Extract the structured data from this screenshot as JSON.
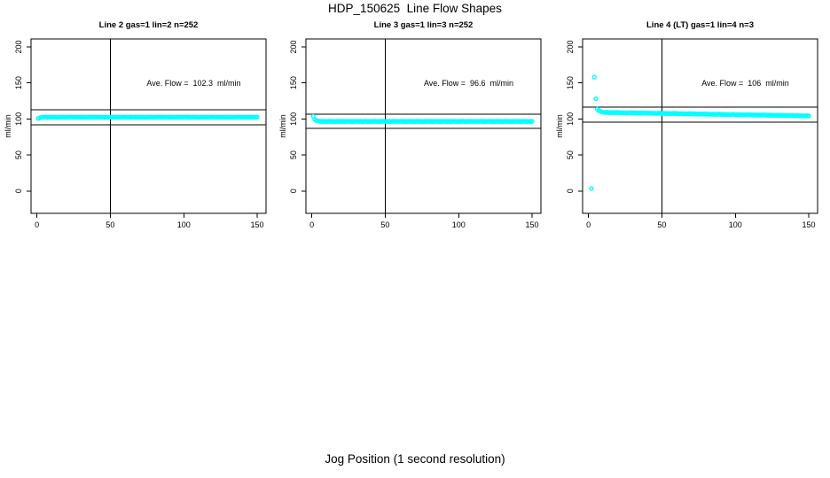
{
  "title": "HDP_150625  Line Flow Shapes",
  "x_axis_label": "Jog Position (1 second resolution)",
  "colors": {
    "points": "#00FFFF",
    "lines": "#000000",
    "background": "#FFFFFF",
    "text": "#000000"
  },
  "chart_data": [
    {
      "type": "scatter",
      "title": "Line 2 gas=1 lin=2 n=252",
      "annotation": "Ave. Flow =  102.3  ml/min",
      "avg_flow_ml_min": 102.3,
      "n": 252,
      "xlabel": "",
      "ylabel": "ml/min",
      "x_ticks": [
        0,
        50,
        100,
        150
      ],
      "y_ticks": [
        0,
        50,
        100,
        150,
        200
      ],
      "xlim": [
        -4,
        156
      ],
      "ylim": [
        -31,
        211
      ],
      "grid": false,
      "ref_lines": {
        "vertical_x": 50,
        "upper_y": 112.5,
        "lower_y": 92.1
      },
      "x_start": 1,
      "y": [
        100.6,
        101.5,
        102.1,
        102.4,
        102.2,
        102.5,
        102.0,
        102.3,
        102.1,
        102.4,
        102.2,
        102.5,
        102.0,
        102.3,
        102.1,
        102.4,
        102.2,
        102.5,
        102.0,
        102.3,
        102.1,
        102.4,
        102.2,
        102.5,
        102.0,
        102.3,
        102.1,
        102.4,
        102.2,
        102.5,
        102.0,
        102.3,
        102.1,
        102.4,
        102.2,
        102.5,
        102.0,
        102.3,
        102.1,
        102.4,
        102.2,
        102.5,
        102.0,
        102.3,
        102.1,
        102.4,
        102.2,
        102.5,
        102.0,
        102.3,
        102.1,
        102.4,
        102.2,
        102.5,
        102.0,
        102.3,
        102.1,
        102.4,
        102.2,
        102.5,
        102.0,
        102.3,
        102.1,
        102.4,
        102.2,
        102.5,
        102.0,
        102.3,
        102.1,
        102.4,
        102.2,
        102.5,
        102.0,
        102.3,
        102.1,
        102.4,
        102.2,
        102.5,
        102.0,
        102.3,
        102.1,
        102.4,
        102.2,
        102.5,
        102.0,
        102.3,
        102.1,
        102.4,
        102.2,
        102.5,
        102.0,
        102.3,
        102.1,
        102.4,
        102.2,
        102.5,
        102.0,
        102.3,
        102.1,
        102.4,
        102.2,
        102.5,
        102.0,
        102.3,
        102.1,
        102.4,
        102.2,
        102.5,
        102.0,
        102.3,
        102.1,
        102.4,
        102.2,
        102.5,
        102.0,
        102.3,
        102.1,
        102.4,
        102.2,
        102.5,
        102.0,
        102.3,
        102.1,
        102.4,
        102.2,
        102.5,
        102.0,
        102.3,
        102.1,
        102.4,
        102.2,
        102.5,
        102.0,
        102.3,
        102.1,
        102.4,
        102.2,
        102.5,
        102.0,
        102.3,
        102.1,
        102.4,
        102.2,
        102.5,
        102.0,
        102.3,
        102.1,
        102.4,
        102.2,
        102.5
      ]
    },
    {
      "type": "scatter",
      "title": "Line 3 gas=1 lin=3 n=252",
      "annotation": "Ave. Flow =  96.6  ml/min",
      "avg_flow_ml_min": 96.6,
      "n": 252,
      "xlabel": "",
      "ylabel": "ml/min",
      "x_ticks": [
        0,
        50,
        100,
        150
      ],
      "y_ticks": [
        0,
        50,
        100,
        150,
        200
      ],
      "xlim": [
        -4,
        156
      ],
      "ylim": [
        -31,
        211
      ],
      "grid": false,
      "ref_lines": {
        "vertical_x": 50,
        "upper_y": 106.3,
        "lower_y": 86.9
      },
      "x_start": 1,
      "y": [
        103.6,
        99.2,
        97.8,
        97.2,
        96.9,
        96.5,
        96.8,
        96.4,
        96.7,
        96.3,
        96.6,
        96.5,
        96.8,
        96.4,
        96.7,
        96.3,
        96.6,
        96.5,
        96.8,
        96.4,
        96.7,
        96.3,
        96.6,
        96.5,
        96.8,
        96.4,
        96.7,
        96.3,
        96.6,
        96.5,
        96.8,
        96.4,
        96.7,
        96.3,
        96.6,
        96.5,
        96.8,
        96.4,
        96.7,
        96.3,
        96.6,
        96.5,
        96.8,
        96.4,
        96.7,
        96.3,
        96.6,
        96.5,
        96.8,
        96.4,
        96.7,
        96.3,
        96.6,
        96.5,
        96.8,
        96.4,
        96.7,
        96.3,
        96.6,
        96.5,
        96.8,
        96.4,
        96.7,
        96.3,
        96.6,
        96.5,
        96.8,
        96.4,
        96.7,
        96.3,
        96.6,
        96.5,
        96.8,
        96.4,
        96.7,
        96.3,
        96.6,
        96.5,
        96.8,
        96.4,
        96.7,
        96.3,
        96.6,
        96.5,
        96.8,
        96.4,
        96.7,
        96.3,
        96.6,
        96.5,
        96.8,
        96.4,
        96.7,
        96.3,
        96.6,
        96.5,
        96.8,
        96.4,
        96.7,
        96.3,
        96.6,
        96.5,
        96.8,
        96.4,
        96.7,
        96.3,
        96.6,
        96.5,
        96.8,
        96.4,
        96.7,
        96.3,
        96.6,
        96.5,
        96.8,
        96.4,
        96.7,
        96.3,
        96.6,
        96.5,
        96.8,
        96.4,
        96.7,
        96.3,
        96.6,
        96.5,
        96.8,
        96.4,
        96.7,
        96.3,
        96.6,
        96.5,
        96.8,
        96.4,
        96.7,
        96.3,
        96.6,
        96.5,
        96.8,
        96.4,
        96.7,
        96.3,
        96.6,
        96.5,
        96.8,
        96.4,
        96.7,
        96.3,
        96.6,
        96.5
      ]
    },
    {
      "type": "scatter",
      "title": "Line 4 (LT) gas=1 lin=4 n=3",
      "annotation": "Ave. Flow =  106  ml/min",
      "avg_flow_ml_min": 106,
      "n": 3,
      "xlabel": "",
      "ylabel": "ml/min",
      "x_ticks": [
        0,
        50,
        100,
        150
      ],
      "y_ticks": [
        0,
        50,
        100,
        150,
        200
      ],
      "xlim": [
        -4,
        156
      ],
      "ylim": [
        -31,
        211
      ],
      "grid": false,
      "ref_lines": {
        "vertical_x": 50,
        "upper_y": 116.6,
        "lower_y": 95.4
      },
      "x_start": 1,
      "y": [
        null,
        3.5,
        null,
        158,
        128,
        113.5,
        111.8,
        110.6,
        109.8,
        109.3,
        109.3,
        108.8,
        109.2,
        108.7,
        109.1,
        108.6,
        109.0,
        108.8,
        109.1,
        108.6,
        108.9,
        108.4,
        108.8,
        108.3,
        108.7,
        108.3,
        108.6,
        108.5,
        108.8,
        108.2,
        108.6,
        108.1,
        108.5,
        108.0,
        108.4,
        108.0,
        108.3,
        108.2,
        108.5,
        107.9,
        108.2,
        107.8,
        108.1,
        107.7,
        108.0,
        107.6,
        107.9,
        107.8,
        108.1,
        107.6,
        107.9,
        107.4,
        107.8,
        107.3,
        107.7,
        107.3,
        107.6,
        107.5,
        107.8,
        107.2,
        107.5,
        107.1,
        107.4,
        107.0,
        107.3,
        106.9,
        107.2,
        107.1,
        107.4,
        106.9,
        107.2,
        106.7,
        107.1,
        106.6,
        107.0,
        106.6,
        106.9,
        106.8,
        107.1,
        106.5,
        106.8,
        106.4,
        106.7,
        106.3,
        106.6,
        106.2,
        106.5,
        106.4,
        106.7,
        106.2,
        106.5,
        106.0,
        106.4,
        105.9,
        106.3,
        105.9,
        106.2,
        106.1,
        106.4,
        105.8,
        106.1,
        105.7,
        106.0,
        105.6,
        105.9,
        105.5,
        105.8,
        105.7,
        106.0,
        105.5,
        105.8,
        105.3,
        105.7,
        105.2,
        105.6,
        105.2,
        105.5,
        105.4,
        105.7,
        105.1,
        105.4,
        105.0,
        105.3,
        104.9,
        105.2,
        104.8,
        105.1,
        105.0,
        105.3,
        104.8,
        105.1,
        104.6,
        105.0,
        104.5,
        104.9,
        104.5,
        104.8,
        104.7,
        105.0,
        104.4,
        104.7,
        104.3,
        104.6,
        104.2,
        104.5,
        104.1,
        104.4,
        104.3,
        104.6,
        104.2
      ]
    }
  ]
}
